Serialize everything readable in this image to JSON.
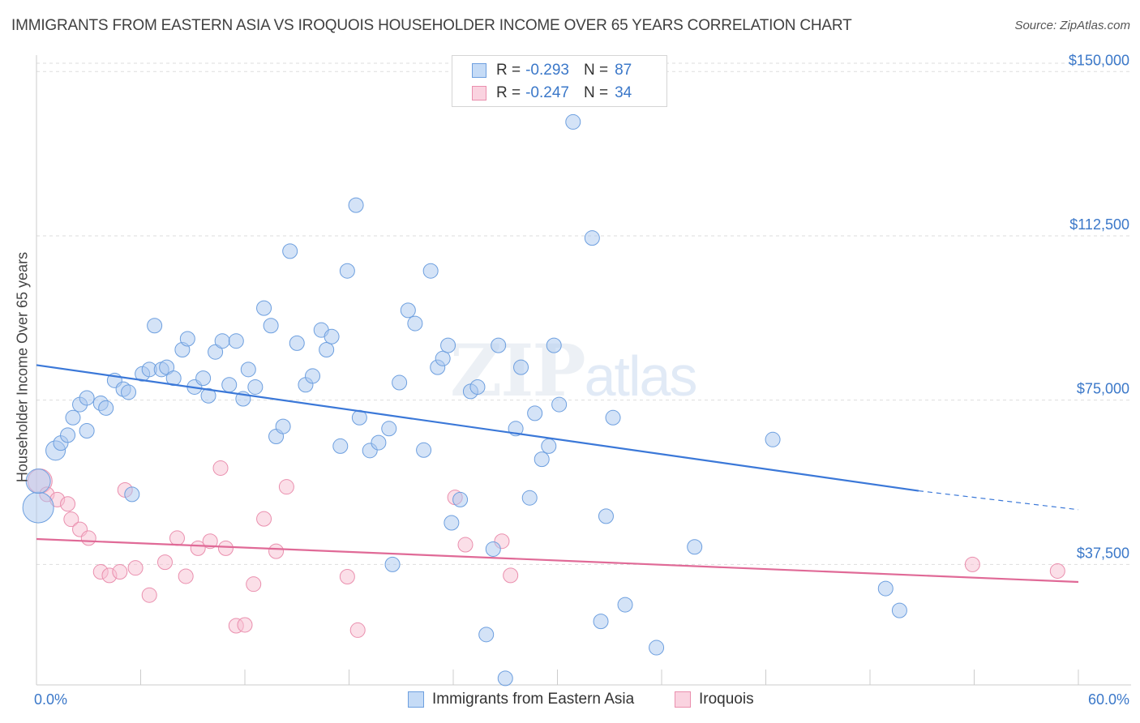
{
  "header": {
    "title": "IMMIGRANTS FROM EASTERN ASIA VS IROQUOIS HOUSEHOLDER INCOME OVER 65 YEARS CORRELATION CHART",
    "source": "Source: ZipAtlas.com"
  },
  "watermark": {
    "zip": "ZIP",
    "atlas": "atlas"
  },
  "legend": {
    "rows": [
      {
        "r_label": "R =",
        "r_value": "-0.293",
        "n_label": "N =",
        "n_value": "87",
        "color": "#a9c8f0",
        "border": "#6d9fdf"
      },
      {
        "r_label": "R =",
        "r_value": "-0.247",
        "n_label": "N =",
        "n_value": "34",
        "color": "#f8c0d2",
        "border": "#ea8fae"
      }
    ]
  },
  "bottom_legend": {
    "series1": "Immigrants from Eastern Asia",
    "series2": "Iroquois"
  },
  "chart_data": {
    "type": "scatter",
    "title": "IMMIGRANTS FROM EASTERN ASIA VS IROQUOIS HOUSEHOLDER INCOME OVER 65 YEARS CORRELATION CHART",
    "xlabel": "",
    "ylabel": "Householder Income Over 65 years",
    "xlim": [
      0,
      60
    ],
    "ylim": [
      10000,
      153750
    ],
    "x_tick_labels": [
      "0.0%",
      "60.0%"
    ],
    "y_ticks": [
      37500,
      75000,
      112500,
      150000
    ],
    "y_tick_labels": [
      "$37,500",
      "$75,000",
      "$112,500",
      "$150,000"
    ],
    "grid": "horizontal dashed",
    "legend_position": "top-center",
    "series": [
      {
        "name": "Immigrants from Eastern Asia",
        "color": "#a9c8f0",
        "edge": "#6d9fdf",
        "points": [
          [
            0.1,
            50500
          ],
          [
            0.1,
            56500
          ],
          [
            1.1,
            63500
          ],
          [
            1.4,
            65200
          ],
          [
            1.8,
            67000
          ],
          [
            2.1,
            71000
          ],
          [
            2.5,
            74000
          ],
          [
            2.9,
            68000
          ],
          [
            2.9,
            75500
          ],
          [
            3.7,
            74300
          ],
          [
            4.0,
            73200
          ],
          [
            4.5,
            79500
          ],
          [
            5.0,
            77500
          ],
          [
            5.3,
            76800
          ],
          [
            5.5,
            53500
          ],
          [
            6.1,
            81000
          ],
          [
            6.5,
            82000
          ],
          [
            6.8,
            92000
          ],
          [
            7.2,
            82000
          ],
          [
            7.5,
            82500
          ],
          [
            7.9,
            80000
          ],
          [
            8.4,
            86500
          ],
          [
            8.7,
            89000
          ],
          [
            9.1,
            78000
          ],
          [
            9.6,
            80000
          ],
          [
            9.9,
            76000
          ],
          [
            10.3,
            86000
          ],
          [
            10.7,
            88500
          ],
          [
            11.1,
            78500
          ],
          [
            11.5,
            88500
          ],
          [
            11.9,
            75300
          ],
          [
            12.2,
            82000
          ],
          [
            12.6,
            78000
          ],
          [
            13.1,
            96000
          ],
          [
            13.5,
            92000
          ],
          [
            13.8,
            66700
          ],
          [
            14.2,
            69000
          ],
          [
            14.6,
            109000
          ],
          [
            15.0,
            88000
          ],
          [
            15.5,
            78500
          ],
          [
            15.9,
            80500
          ],
          [
            16.4,
            91000
          ],
          [
            16.7,
            86500
          ],
          [
            17.0,
            89500
          ],
          [
            17.5,
            64500
          ],
          [
            17.9,
            104500
          ],
          [
            18.4,
            119500
          ],
          [
            18.6,
            71000
          ],
          [
            19.2,
            63500
          ],
          [
            19.7,
            65300
          ],
          [
            20.3,
            68500
          ],
          [
            20.5,
            37500
          ],
          [
            20.9,
            79000
          ],
          [
            21.4,
            95500
          ],
          [
            21.8,
            92500
          ],
          [
            22.3,
            63600
          ],
          [
            22.7,
            104500
          ],
          [
            23.1,
            82500
          ],
          [
            23.4,
            84500
          ],
          [
            23.7,
            87500
          ],
          [
            23.9,
            47000
          ],
          [
            24.4,
            52300
          ],
          [
            25.0,
            77000
          ],
          [
            25.4,
            78000
          ],
          [
            25.9,
            21500
          ],
          [
            26.3,
            41000
          ],
          [
            26.6,
            87500
          ],
          [
            27.0,
            11500
          ],
          [
            27.6,
            68500
          ],
          [
            27.9,
            82500
          ],
          [
            28.4,
            52700
          ],
          [
            28.7,
            72000
          ],
          [
            29.1,
            61500
          ],
          [
            29.5,
            64500
          ],
          [
            29.8,
            87500
          ],
          [
            30.1,
            74000
          ],
          [
            30.9,
            138500
          ],
          [
            32.0,
            112000
          ],
          [
            32.5,
            24500
          ],
          [
            32.8,
            48500
          ],
          [
            33.2,
            71000
          ],
          [
            33.9,
            28300
          ],
          [
            35.7,
            18500
          ],
          [
            37.9,
            41500
          ],
          [
            42.4,
            66000
          ],
          [
            48.9,
            32000
          ],
          [
            49.7,
            27000
          ]
        ]
      },
      {
        "name": "Iroquois",
        "color": "#f8c0d2",
        "edge": "#ea8fae",
        "points": [
          [
            0.2,
            56500
          ],
          [
            0.6,
            53500
          ],
          [
            1.2,
            52300
          ],
          [
            1.8,
            51300
          ],
          [
            2.0,
            47800
          ],
          [
            2.5,
            45500
          ],
          [
            3.0,
            43500
          ],
          [
            3.7,
            35800
          ],
          [
            4.2,
            35000
          ],
          [
            4.8,
            35800
          ],
          [
            5.1,
            54500
          ],
          [
            5.7,
            36700
          ],
          [
            6.5,
            30500
          ],
          [
            7.4,
            38000
          ],
          [
            8.1,
            43500
          ],
          [
            8.6,
            34800
          ],
          [
            9.3,
            41200
          ],
          [
            10.0,
            42800
          ],
          [
            10.6,
            59500
          ],
          [
            10.9,
            41200
          ],
          [
            11.5,
            23500
          ],
          [
            12.0,
            23700
          ],
          [
            12.5,
            33000
          ],
          [
            13.1,
            47900
          ],
          [
            13.8,
            40500
          ],
          [
            14.4,
            55200
          ],
          [
            17.9,
            34700
          ],
          [
            18.5,
            22500
          ],
          [
            24.1,
            52800
          ],
          [
            24.7,
            42000
          ],
          [
            26.8,
            42800
          ],
          [
            27.3,
            35000
          ],
          [
            53.9,
            37500
          ],
          [
            58.8,
            36000
          ]
        ]
      }
    ],
    "trend_lines": [
      {
        "series": "Immigrants from Eastern Asia",
        "x": [
          0,
          50.8
        ],
        "y": [
          83000,
          54300
        ],
        "dashed_extension_to_x": 60,
        "dashed_extension_y": 50000,
        "color": "#3b78d8"
      },
      {
        "series": "Iroquois",
        "x": [
          0,
          60
        ],
        "y": [
          43300,
          33500
        ],
        "color": "#e06a97"
      }
    ]
  }
}
